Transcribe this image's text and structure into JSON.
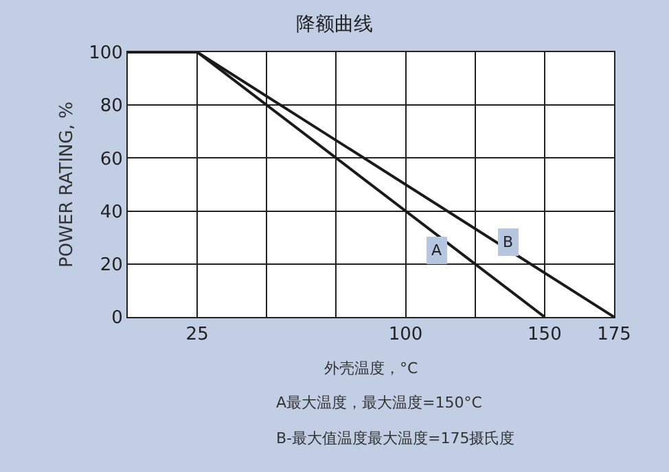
{
  "chart_data": {
    "type": "line",
    "title": "降额曲线",
    "xlabel": "外壳温度，°C",
    "ylabel": "POWER RATING, %",
    "series": [
      {
        "name": "A",
        "color": "#1a1a1a",
        "x": [
          0,
          25,
          150
        ],
        "values": [
          100,
          100,
          0
        ]
      },
      {
        "name": "B",
        "color": "#1a1a1a",
        "x": [
          0,
          25,
          175
        ],
        "values": [
          100,
          100,
          0
        ]
      }
    ],
    "xlim": [
      0,
      175
    ],
    "xticks": [
      {
        "value": 0,
        "label": null
      },
      25,
      {
        "value": 50,
        "label": null
      },
      {
        "value": 75,
        "label": null
      },
      100,
      {
        "value": 125,
        "label": null
      },
      150,
      175
    ],
    "ylim": [
      0,
      100
    ],
    "yticks": [
      0,
      20,
      40,
      60,
      80,
      100
    ],
    "grid": true,
    "legend": false,
    "marker": "none",
    "line_style": "solid",
    "annotations": [
      "A最大温度，最大温度=150°C",
      "B-最大值温度最大温度=175摄氏度"
    ]
  }
}
